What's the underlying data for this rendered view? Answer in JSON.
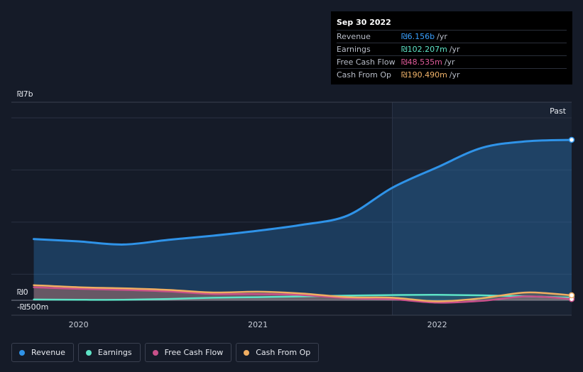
{
  "tooltip": {
    "date": "Sep 30 2022",
    "rows": [
      {
        "name": "Revenue",
        "value": "₪6.156b",
        "unit": "/yr",
        "color": "#3aa0ff"
      },
      {
        "name": "Earnings",
        "value": "₪102.207m",
        "unit": "/yr",
        "color": "#5ee3c6"
      },
      {
        "name": "Free Cash Flow",
        "value": "₪48.535m",
        "unit": "/yr",
        "color": "#e05a9a"
      },
      {
        "name": "Cash From Op",
        "value": "₪190.490m",
        "unit": "/yr",
        "color": "#f2b46a"
      }
    ]
  },
  "legend": [
    {
      "label": "Revenue",
      "color": "#2f93e8"
    },
    {
      "label": "Earnings",
      "color": "#5ee3c6"
    },
    {
      "label": "Free Cash Flow",
      "color": "#c8508a"
    },
    {
      "label": "Cash From Op",
      "color": "#f0ae62"
    }
  ],
  "chart_data": {
    "type": "line",
    "ylim": [
      -500000000,
      7000000000
    ],
    "y_tick_labels": [
      {
        "value": 7000000000,
        "label": "₪7b"
      },
      {
        "value": 0,
        "label": "₪0"
      },
      {
        "value": -500000000,
        "label": "-₪500m"
      }
    ],
    "x_ticks": [
      {
        "value": 2020.0,
        "label": "2020"
      },
      {
        "value": 2021.0,
        "label": "2021"
      },
      {
        "value": 2022.0,
        "label": "2022"
      }
    ],
    "past_label": "Past",
    "past_start": 2021.75,
    "x_range": [
      2019.75,
      2022.75
    ],
    "grid": true,
    "series": [
      {
        "name": "Revenue",
        "color": "#2f93e8",
        "points": [
          [
            2019.75,
            2350000000.0
          ],
          [
            2020.0,
            2260000000.0
          ],
          [
            2020.25,
            2140000000.0
          ],
          [
            2020.5,
            2320000000.0
          ],
          [
            2020.75,
            2480000000.0
          ],
          [
            2021.0,
            2670000000.0
          ],
          [
            2021.25,
            2900000000.0
          ],
          [
            2021.5,
            3250000000.0
          ],
          [
            2021.75,
            4320000000.0
          ],
          [
            2022.0,
            5100000000.0
          ],
          [
            2022.25,
            5850000000.0
          ],
          [
            2022.5,
            6100000000.0
          ],
          [
            2022.75,
            6156000000.0
          ]
        ]
      },
      {
        "name": "Earnings",
        "color": "#5ee3c6",
        "points": [
          [
            2019.75,
            30000000.0
          ],
          [
            2020.0,
            20000000.0
          ],
          [
            2020.25,
            20000000.0
          ],
          [
            2020.5,
            50000000.0
          ],
          [
            2020.75,
            100000000.0
          ],
          [
            2021.0,
            120000000.0
          ],
          [
            2021.25,
            150000000.0
          ],
          [
            2021.5,
            180000000.0
          ],
          [
            2021.75,
            200000000.0
          ],
          [
            2022.0,
            210000000.0
          ],
          [
            2022.25,
            190000000.0
          ],
          [
            2022.5,
            150000000.0
          ],
          [
            2022.75,
            102207000.0
          ]
        ]
      },
      {
        "name": "Free Cash Flow",
        "color": "#c8508a",
        "points": [
          [
            2019.75,
            500000000.0
          ],
          [
            2020.0,
            440000000.0
          ],
          [
            2020.25,
            400000000.0
          ],
          [
            2020.5,
            340000000.0
          ],
          [
            2020.75,
            240000000.0
          ],
          [
            2021.0,
            240000000.0
          ],
          [
            2021.25,
            200000000.0
          ],
          [
            2021.5,
            80000000.0
          ],
          [
            2021.75,
            40000000.0
          ],
          [
            2022.0,
            -90000000.0
          ],
          [
            2022.25,
            -20000000.0
          ],
          [
            2022.5,
            150000000.0
          ],
          [
            2022.75,
            48535000.0
          ]
        ]
      },
      {
        "name": "Cash From Op",
        "color": "#f0ae62",
        "points": [
          [
            2019.75,
            580000000.0
          ],
          [
            2020.0,
            500000000.0
          ],
          [
            2020.25,
            460000000.0
          ],
          [
            2020.5,
            400000000.0
          ],
          [
            2020.75,
            300000000.0
          ],
          [
            2021.0,
            330000000.0
          ],
          [
            2021.25,
            260000000.0
          ],
          [
            2021.5,
            120000000.0
          ],
          [
            2021.75,
            100000000.0
          ],
          [
            2022.0,
            -40000000.0
          ],
          [
            2022.25,
            80000000.0
          ],
          [
            2022.5,
            300000000.0
          ],
          [
            2022.75,
            190490000.0
          ]
        ]
      }
    ]
  }
}
